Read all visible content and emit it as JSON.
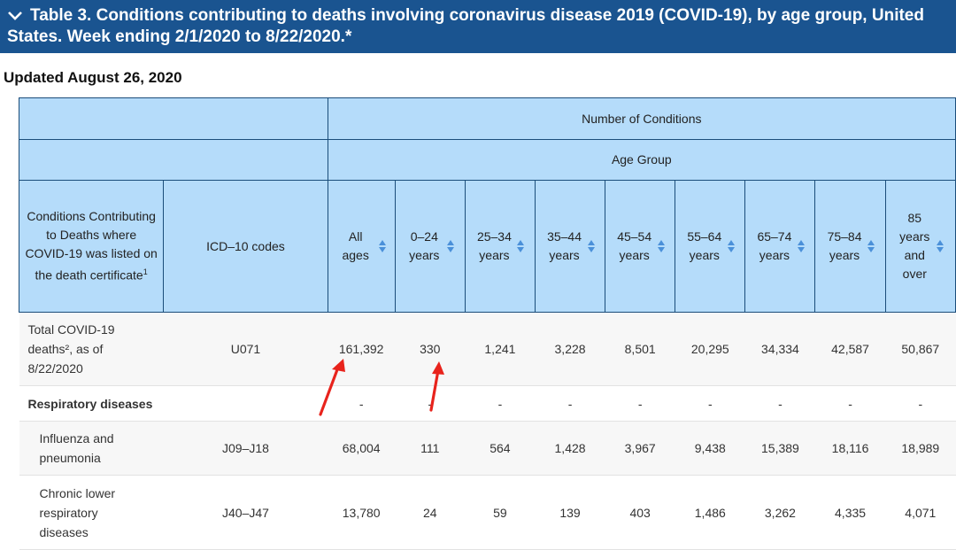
{
  "title": "Table 3. Conditions contributing to deaths involving coronavirus disease 2019 (COVID-19), by age group, United States. Week ending 2/1/2020 to 8/22/2020.*",
  "updated": "Updated August 26, 2020",
  "header": {
    "number_of_conditions": "Number of Conditions",
    "age_group": "Age Group",
    "conditions_col": "Conditions Contributing to Deaths where COVID-19 was listed on the death certificate",
    "conditions_sup": "1",
    "icd_col": "ICD–10 codes",
    "age_cols": [
      "All ages",
      "0–24 years",
      "25–34 years",
      "35–44 years",
      "45–54 years",
      "55–64 years",
      "65–74 years",
      "75–84 years",
      "85 years and over"
    ]
  },
  "rows": [
    {
      "label": "Total COVID-19 deaths², as of 8/22/2020",
      "code": "U071",
      "values": [
        "161,392",
        "330",
        "1,241",
        "3,228",
        "8,501",
        "20,295",
        "34,334",
        "42,587",
        "50,867"
      ]
    },
    {
      "label": "Respiratory diseases",
      "code": "",
      "values": [
        "-",
        "-",
        "-",
        "-",
        "-",
        "-",
        "-",
        "-",
        "-"
      ]
    },
    {
      "label": "Influenza and pneumonia",
      "code": "J09–J18",
      "values": [
        "68,004",
        "111",
        "564",
        "1,428",
        "3,967",
        "9,438",
        "15,389",
        "18,116",
        "18,989"
      ]
    },
    {
      "label": "Chronic lower respiratory diseases",
      "code": "J40–J47",
      "values": [
        "13,780",
        "24",
        "59",
        "139",
        "403",
        "1,486",
        "3,262",
        "4,335",
        "4,071"
      ]
    }
  ],
  "colors": {
    "title_bg": "#1a5490",
    "header_bg": "#b5dcfa",
    "arrow": "#e8231c",
    "sort_icon": "#4a90d9"
  }
}
